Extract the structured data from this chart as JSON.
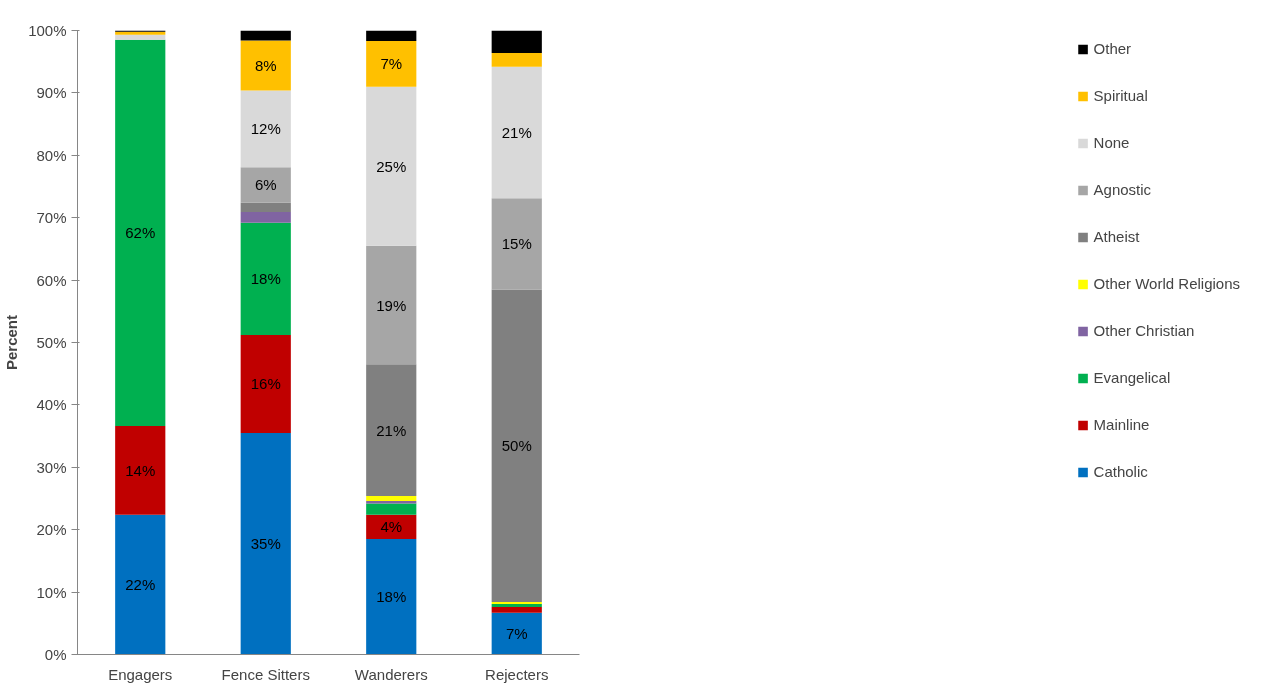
{
  "chart_data": {
    "type": "bar",
    "stacked": true,
    "ylabel": "Percent",
    "categories": [
      "Engagers",
      "Fence Sitters",
      "Wanderers",
      "Rejecters"
    ],
    "ylim": [
      0,
      100
    ],
    "yticks": [
      {
        "value": 0,
        "label": "0%"
      },
      {
        "value": 10,
        "label": "10%"
      },
      {
        "value": 20,
        "label": "20%"
      },
      {
        "value": 30,
        "label": "30%"
      },
      {
        "value": 40,
        "label": "40%"
      },
      {
        "value": 50,
        "label": "50%"
      },
      {
        "value": 60,
        "label": "60%"
      },
      {
        "value": 70,
        "label": "70%"
      },
      {
        "value": 80,
        "label": "80%"
      },
      {
        "value": 90,
        "label": "90%"
      },
      {
        "value": 100,
        "label": "100%"
      }
    ],
    "grid": false,
    "legend": "right",
    "series": [
      {
        "name": "Catholic",
        "color": "#0070c0",
        "values": [
          22.4,
          35.5,
          18.5,
          6.7
        ],
        "value_labels": [
          "22%",
          "35%",
          "18%",
          "7%"
        ]
      },
      {
        "name": "Mainline",
        "color": "#c00000",
        "values": [
          14.2,
          15.7,
          3.9,
          0.9
        ],
        "value_labels": [
          "14%",
          "16%",
          "4%",
          null
        ]
      },
      {
        "name": "Evangelical",
        "color": "#00b050",
        "values": [
          61.9,
          18.0,
          1.8,
          0.5
        ],
        "value_labels": [
          "62%",
          "18%",
          null,
          null
        ]
      },
      {
        "name": "Other Christian",
        "color": "#8064a2",
        "values": [
          0,
          1.7,
          0.4,
          0
        ],
        "value_labels": [
          null,
          null,
          null,
          null
        ]
      },
      {
        "name": "Other World Religions",
        "color": "#ffff00",
        "values": [
          0,
          0,
          0.8,
          0.3
        ],
        "value_labels": [
          null,
          null,
          null,
          null
        ]
      },
      {
        "name": "Atheist",
        "color": "#808080",
        "values": [
          0,
          1.5,
          21.1,
          50.1
        ],
        "value_labels": [
          null,
          null,
          "21%",
          "50%"
        ]
      },
      {
        "name": "Agnostic",
        "color": "#a6a6a6",
        "values": [
          0,
          5.7,
          19.0,
          14.6
        ],
        "value_labels": [
          null,
          "6%",
          "19%",
          "15%"
        ]
      },
      {
        "name": "None",
        "color": "#d9d9d9",
        "values": [
          0.8,
          12.3,
          25.5,
          21.1
        ],
        "value_labels": [
          null,
          "12%",
          "25%",
          "21%"
        ]
      },
      {
        "name": "Spiritual",
        "color": "#ffc000",
        "values": [
          0.5,
          8.0,
          7.3,
          2.2
        ],
        "value_labels": [
          null,
          "8%",
          "7%",
          null
        ]
      },
      {
        "name": "Other",
        "color": "#000000",
        "values": [
          0.2,
          1.6,
          1.7,
          3.6
        ],
        "value_labels": [
          null,
          null,
          null,
          null
        ]
      }
    ]
  }
}
